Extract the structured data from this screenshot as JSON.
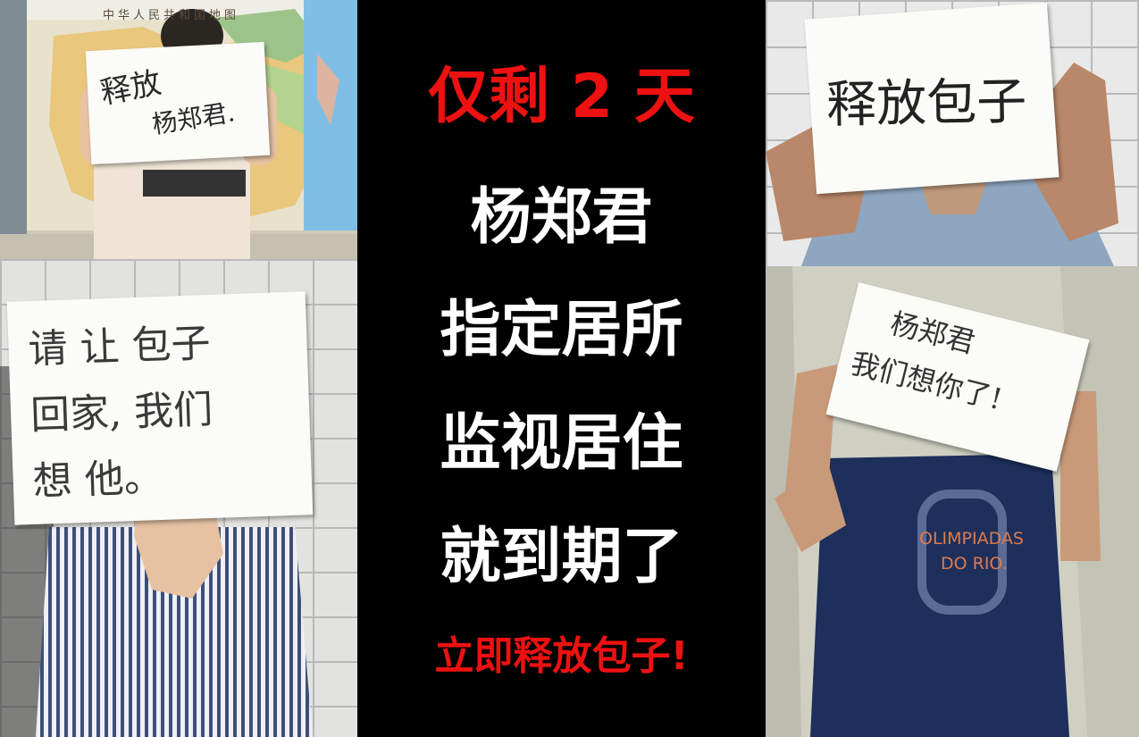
{
  "headline": {
    "line1": "仅剩 2 天",
    "line2": "杨郑君",
    "line3": "指定居所",
    "line4": "监视居住",
    "line5": "就到期了",
    "line6": "立即释放包子!"
  },
  "photos": {
    "top_left": {
      "map_title": "中华人民共和国地图",
      "sign_line1": "释放",
      "sign_line2": "杨郑君."
    },
    "top_right": {
      "sign": "释放包子"
    },
    "bottom_left": {
      "sign_line1": "请 让 包子",
      "sign_line2": "回家, 我们",
      "sign_line3": "想 他。"
    },
    "bottom_right": {
      "sign_line1": "杨郑君",
      "sign_line2": "我们想你了!",
      "shirt_line1": "OLIMPIADAS",
      "shirt_line2": "DO RIO."
    }
  },
  "colors": {
    "headline_red": "#ee1111",
    "headline_white": "#ffffff",
    "background": "#000000"
  }
}
